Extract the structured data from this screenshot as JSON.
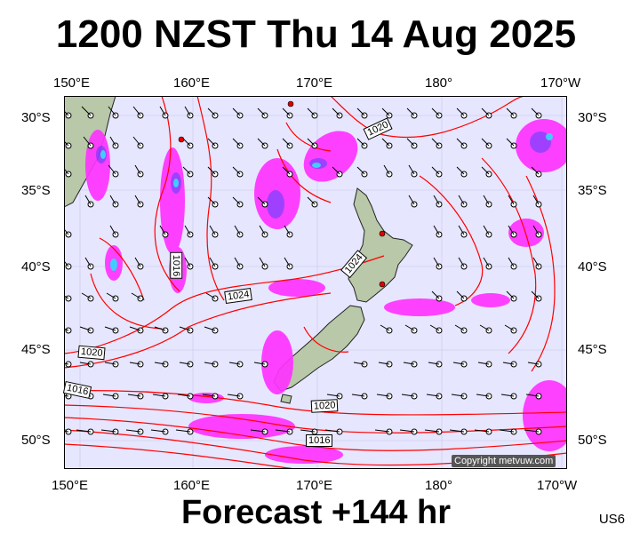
{
  "title": "1200 NZST Thu 14 Aug 2025",
  "footer": "Forecast +144 hr",
  "model_code": "US6",
  "copyright": "Copyright metvuw.com",
  "lon_labels_top": [
    "150°E",
    "160°E",
    "170°E",
    "180°",
    "170°W"
  ],
  "lon_labels_bottom": [
    "150°E",
    "160°E",
    "170°E",
    "180°",
    "170°W"
  ],
  "lat_labels_left": [
    "30°S",
    "35°S",
    "40°S",
    "45°S",
    "50°S"
  ],
  "lat_labels_right": [
    "30°S",
    "35°S",
    "40°S",
    "45°S",
    "50°S"
  ],
  "isobar_labels": [
    "1020",
    "1024",
    "1024",
    "1020",
    "1016",
    "1020",
    "1016",
    "1016"
  ],
  "colors": {
    "sea": "#e6e6ff",
    "isobar": "#ff0000",
    "rain_light": "#ff33ff",
    "rain_mid": "#9933ff",
    "rain_heavy": "#33ccff",
    "land": "#b8c8a8"
  }
}
